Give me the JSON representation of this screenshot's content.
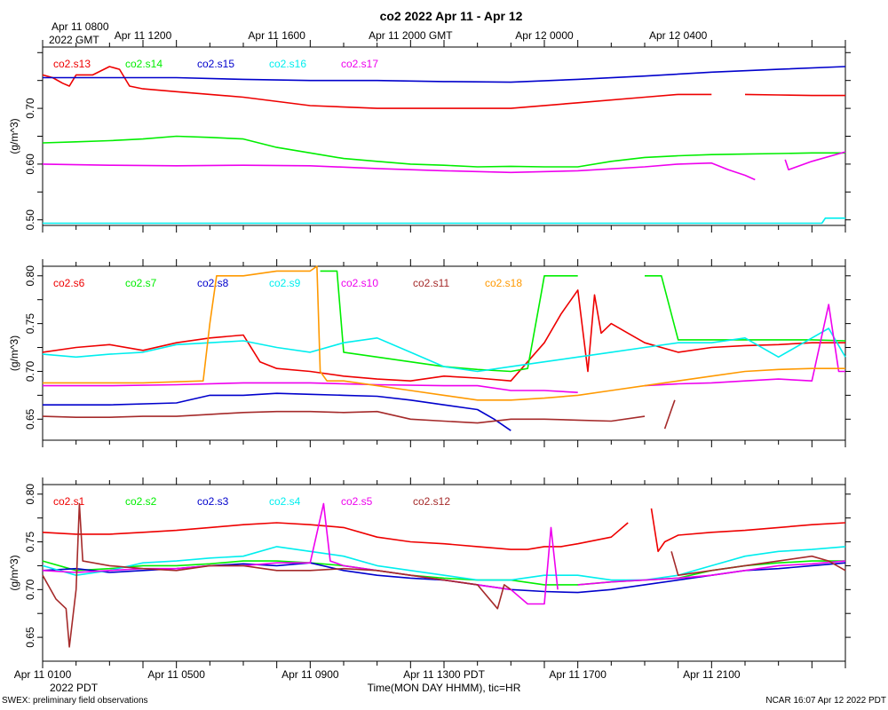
{
  "title": "co2 2022 Apr 11 - Apr 12",
  "top_axis": {
    "origin_line1": "Apr 11 0800",
    "origin_line2": "2022 GMT",
    "tick_labels": [
      "Apr 11 1200",
      "Apr 11 1600",
      "Apr 11 2000 GMT",
      "Apr 12 0000",
      "Apr 12 0400"
    ]
  },
  "bottom_axis": {
    "origin_line2": "2022 PDT",
    "tick_labels": [
      "Apr 11 0100",
      "Apr 11 0500",
      "Apr 11 0900",
      "Apr 11 1300 PDT",
      "Apr 11 1700",
      "Apr 11 2100"
    ],
    "xlabel": "Time(MON DAY HHMM), tic=HR"
  },
  "footer": {
    "left": "SWEX: preliminary field observations",
    "right": "NCAR 16:07 Apr 12 2022 PDT"
  },
  "colors": {
    "red": "#ee0000",
    "green": "#00ee00",
    "blue": "#0000cc",
    "cyan": "#00eeee",
    "magenta": "#ee00ee",
    "brown": "#a52a2a",
    "orange": "#ff9900"
  },
  "chart_data": [
    {
      "type": "line",
      "ylabel": "(g/m^3)",
      "ylim": [
        0.49,
        0.81
      ],
      "yticks": [
        "0.50",
        "0.60",
        "0.70"
      ],
      "ytick_values": [
        0.5,
        0.6,
        0.7
      ],
      "series": [
        {
          "name": "co2.s13",
          "color": "#ee0000",
          "x": [
            0,
            0.3,
            0.6,
            0.8,
            1,
            1.5,
            2,
            2.3,
            2.6,
            3,
            4,
            6,
            8,
            10,
            11,
            12,
            14,
            16,
            18,
            19,
            20,
            20.5,
            21,
            22,
            23,
            24
          ],
          "y": [
            0.76,
            0.755,
            0.745,
            0.74,
            0.76,
            0.76,
            0.775,
            0.77,
            0.74,
            0.735,
            0.73,
            0.72,
            0.705,
            0.7,
            0.7,
            0.7,
            0.7,
            0.71,
            0.72,
            0.725,
            0.725,
            null,
            0.725,
            0.724,
            0.723,
            0.723
          ]
        },
        {
          "name": "co2.s14",
          "color": "#00ee00",
          "x": [
            0,
            1,
            2,
            3,
            4,
            5,
            6,
            7,
            8,
            9,
            10,
            11,
            12,
            13,
            14,
            15,
            16,
            17,
            18,
            19,
            20,
            21,
            22,
            23,
            24
          ],
          "y": [
            0.638,
            0.64,
            0.642,
            0.645,
            0.65,
            0.648,
            0.645,
            0.63,
            0.62,
            0.61,
            0.605,
            0.6,
            0.598,
            0.595,
            0.596,
            0.595,
            0.595,
            0.605,
            0.612,
            0.615,
            0.617,
            0.618,
            0.619,
            0.62,
            0.62
          ]
        },
        {
          "name": "co2.s15",
          "color": "#0000cc",
          "x": [
            0,
            2,
            4,
            6,
            8,
            10,
            12,
            14,
            16,
            18,
            20,
            22,
            24
          ],
          "y": [
            0.755,
            0.755,
            0.755,
            0.752,
            0.75,
            0.75,
            0.748,
            0.747,
            0.752,
            0.758,
            0.765,
            0.77,
            0.775
          ]
        },
        {
          "name": "co2.s16",
          "color": "#00eeee",
          "x": [
            0,
            4,
            8,
            12,
            16,
            20,
            23.3,
            23.4,
            24
          ],
          "y": [
            0.494,
            0.494,
            0.494,
            0.494,
            0.494,
            0.494,
            0.494,
            0.503,
            0.503
          ]
        },
        {
          "name": "co2.s17",
          "color": "#ee00ee",
          "x": [
            0,
            2,
            4,
            6,
            8,
            10,
            12,
            14,
            16,
            18,
            19,
            20,
            20.5,
            21,
            21.3,
            null,
            22.2,
            22.3,
            23,
            24
          ],
          "y": [
            0.6,
            0.598,
            0.597,
            0.598,
            0.597,
            0.592,
            0.588,
            0.585,
            0.588,
            0.595,
            0.6,
            0.602,
            0.59,
            0.58,
            0.572,
            null,
            0.608,
            0.59,
            0.605,
            0.622
          ]
        }
      ]
    },
    {
      "type": "line",
      "ylabel": "(g/m^3)",
      "ylim": [
        0.628,
        0.81
      ],
      "yticks": [
        "0.65",
        "0.70",
        "0.75",
        "0.80"
      ],
      "ytick_values": [
        0.65,
        0.7,
        0.75,
        0.8
      ],
      "series": [
        {
          "name": "co2.s6",
          "color": "#ee0000",
          "x": [
            0,
            1,
            2,
            3,
            4,
            5,
            6,
            6.5,
            7,
            8,
            9,
            10,
            11,
            12,
            13,
            14,
            15,
            15.5,
            16,
            16.3,
            16.5,
            16.7,
            17,
            17.5,
            18,
            19,
            20,
            21,
            22,
            23,
            24
          ],
          "y": [
            0.72,
            0.725,
            0.728,
            0.722,
            0.73,
            0.735,
            0.738,
            0.71,
            0.703,
            0.7,
            0.695,
            0.692,
            0.69,
            0.695,
            0.693,
            0.69,
            0.73,
            0.76,
            0.785,
            0.7,
            0.78,
            0.74,
            0.75,
            0.74,
            0.73,
            0.72,
            0.725,
            0.727,
            0.728,
            0.73,
            0.73
          ]
        },
        {
          "name": "co2.s7",
          "color": "#00ee00",
          "x": [
            8.3,
            8.8,
            9,
            10,
            11,
            12,
            13,
            14,
            14.5,
            14.9,
            15,
            16,
            17,
            18,
            18.5,
            19,
            20,
            21,
            22,
            23,
            24
          ],
          "y": [
            0.805,
            0.805,
            0.72,
            0.715,
            0.71,
            0.705,
            0.702,
            0.7,
            0.703,
            0.78,
            0.8,
            0.8,
            null,
            0.8,
            0.8,
            0.733,
            0.733,
            0.733,
            0.733,
            0.733,
            0.732
          ]
        },
        {
          "name": "co2.s8",
          "color": "#0000cc",
          "x": [
            0,
            2,
            4,
            5,
            6,
            7,
            8,
            9,
            10,
            11,
            12,
            13,
            13.5,
            14
          ],
          "y": [
            0.665,
            0.665,
            0.667,
            0.675,
            0.675,
            0.677,
            0.676,
            0.675,
            0.674,
            0.67,
            0.665,
            0.66,
            0.65,
            0.638
          ]
        },
        {
          "name": "co2.s9",
          "color": "#00eeee",
          "x": [
            0,
            1,
            2,
            3,
            4,
            5,
            6,
            7,
            8,
            9,
            10,
            11,
            12,
            13,
            14,
            15,
            16,
            17,
            18,
            19,
            20,
            21,
            22,
            23,
            23.5,
            24
          ],
          "y": [
            0.718,
            0.715,
            0.718,
            0.72,
            0.728,
            0.73,
            0.732,
            0.725,
            0.72,
            0.73,
            0.735,
            0.72,
            0.705,
            0.7,
            0.705,
            0.71,
            0.715,
            0.72,
            0.725,
            0.73,
            0.73,
            0.735,
            0.715,
            0.735,
            0.745,
            0.715
          ]
        },
        {
          "name": "co2.s10",
          "color": "#ee00ee",
          "x": [
            0,
            2,
            4,
            6,
            8,
            10,
            12,
            13,
            14,
            15,
            16,
            17,
            18,
            19,
            20,
            21,
            22,
            23,
            23.5,
            23.8,
            24
          ],
          "y": [
            0.685,
            0.685,
            0.686,
            0.688,
            0.688,
            0.686,
            0.685,
            0.685,
            0.68,
            0.68,
            0.678,
            null,
            0.685,
            0.687,
            0.688,
            0.69,
            0.692,
            0.69,
            0.77,
            0.7,
            0.7
          ]
        },
        {
          "name": "co2.s11",
          "color": "#a52a2a",
          "x": [
            0,
            1,
            2,
            3,
            4,
            5,
            6,
            7,
            8,
            9,
            10,
            11,
            12,
            13,
            14,
            15,
            16,
            17,
            18,
            null,
            18.6,
            18.8,
            18.9
          ],
          "y": [
            0.653,
            0.652,
            0.652,
            0.653,
            0.653,
            0.655,
            0.657,
            0.658,
            0.658,
            0.657,
            0.658,
            0.65,
            0.648,
            0.646,
            0.65,
            0.65,
            0.649,
            0.648,
            0.653,
            null,
            0.64,
            0.66,
            0.67
          ]
        },
        {
          "name": "co2.s18",
          "color": "#ff9900",
          "x": [
            0,
            3,
            4.8,
            5,
            5.2,
            6,
            7,
            8,
            8.2,
            8.3,
            8.5,
            9,
            10,
            11,
            12,
            13,
            14,
            15,
            16,
            17,
            18,
            19,
            20,
            21,
            22,
            23,
            24
          ],
          "y": [
            0.688,
            0.688,
            0.69,
            0.75,
            0.8,
            0.8,
            0.805,
            0.805,
            0.81,
            0.7,
            0.69,
            0.69,
            0.685,
            0.68,
            0.675,
            0.67,
            0.67,
            0.672,
            0.675,
            0.68,
            0.685,
            0.69,
            0.695,
            0.7,
            0.702,
            0.703,
            0.703
          ]
        }
      ]
    },
    {
      "type": "line",
      "ylabel": "(g/m^3)",
      "ylim": [
        0.625,
        0.81
      ],
      "yticks": [
        "0.65",
        "0.70",
        "0.75",
        "0.80"
      ],
      "ytick_values": [
        0.65,
        0.7,
        0.75,
        0.8
      ],
      "series": [
        {
          "name": "co2.s1",
          "color": "#ee0000",
          "x": [
            0,
            1,
            2,
            3,
            4,
            5,
            6,
            7,
            8,
            9,
            10,
            11,
            12,
            13,
            14,
            14.5,
            15,
            15.5,
            16,
            17,
            17.5,
            null,
            18.2,
            18.4,
            18.6,
            19,
            20,
            21,
            22,
            23,
            24
          ],
          "y": [
            0.76,
            0.758,
            0.758,
            0.76,
            0.762,
            0.765,
            0.768,
            0.77,
            0.768,
            0.765,
            0.755,
            0.75,
            0.748,
            0.745,
            0.742,
            0.742,
            0.745,
            0.745,
            0.748,
            0.755,
            0.77,
            null,
            0.785,
            0.74,
            0.75,
            0.757,
            0.76,
            0.762,
            0.765,
            0.768,
            0.77
          ]
        },
        {
          "name": "co2.s2",
          "color": "#00ee00",
          "x": [
            0,
            1,
            2,
            3,
            4,
            5,
            6,
            7,
            8,
            9,
            10,
            11,
            12,
            13,
            14,
            15,
            16,
            17,
            18,
            19,
            20,
            21,
            22,
            23,
            24
          ],
          "y": [
            0.73,
            0.72,
            0.722,
            0.725,
            0.725,
            0.727,
            0.73,
            0.73,
            0.728,
            0.725,
            0.72,
            0.715,
            0.712,
            0.71,
            0.71,
            0.705,
            0.705,
            0.708,
            0.71,
            0.712,
            0.72,
            0.725,
            0.728,
            0.73,
            0.73
          ]
        },
        {
          "name": "co2.s3",
          "color": "#0000cc",
          "x": [
            0,
            1,
            2,
            3,
            4,
            5,
            6,
            7,
            8,
            9,
            10,
            11,
            12,
            13,
            14,
            15,
            16,
            17,
            18,
            19,
            20,
            21,
            22,
            23,
            24
          ],
          "y": [
            0.72,
            0.722,
            0.718,
            0.72,
            0.722,
            0.725,
            0.727,
            0.725,
            0.728,
            0.72,
            0.715,
            0.712,
            0.71,
            0.705,
            0.7,
            0.698,
            0.697,
            0.7,
            0.705,
            0.71,
            0.715,
            0.72,
            0.722,
            0.725,
            0.728
          ]
        },
        {
          "name": "co2.s4",
          "color": "#00eeee",
          "x": [
            0,
            1,
            2,
            3,
            4,
            5,
            6,
            7,
            8,
            9,
            10,
            11,
            12,
            13,
            14,
            15,
            16,
            17,
            18,
            19,
            20,
            21,
            22,
            23,
            24
          ],
          "y": [
            0.725,
            0.715,
            0.72,
            0.728,
            0.73,
            0.733,
            0.735,
            0.745,
            0.74,
            0.735,
            0.725,
            0.72,
            0.715,
            0.71,
            0.71,
            0.715,
            0.715,
            0.71,
            0.71,
            0.715,
            0.725,
            0.735,
            0.74,
            0.742,
            0.745
          ]
        },
        {
          "name": "co2.s5",
          "color": "#ee00ee",
          "x": [
            0,
            1,
            2,
            3,
            4,
            5,
            6,
            7,
            8,
            8.4,
            8.6,
            9,
            10,
            11,
            12,
            13,
            14,
            14.5,
            15,
            15.2,
            15.4,
            null,
            16,
            17,
            18,
            19,
            20,
            21,
            22,
            23,
            24
          ],
          "y": [
            0.72,
            0.718,
            0.72,
            0.722,
            0.722,
            0.725,
            0.725,
            0.728,
            0.728,
            0.79,
            0.73,
            0.725,
            0.72,
            0.715,
            0.71,
            0.705,
            0.7,
            0.685,
            0.685,
            0.765,
            0.7,
            null,
            0.705,
            0.708,
            0.71,
            0.712,
            0.715,
            0.72,
            0.725,
            0.727,
            0.73
          ]
        },
        {
          "name": "co2.s12",
          "color": "#a52a2a",
          "x": [
            0,
            0.4,
            0.7,
            0.8,
            1,
            1.1,
            1.2,
            2,
            3,
            4,
            5,
            6,
            7,
            8,
            9,
            10,
            11,
            12,
            13,
            13.6,
            13.8,
            14,
            null,
            18.8,
            19,
            20,
            21,
            22,
            23,
            23.5,
            24
          ],
          "y": [
            0.715,
            0.69,
            0.68,
            0.64,
            0.7,
            0.79,
            0.73,
            0.725,
            0.722,
            0.72,
            0.725,
            0.725,
            0.72,
            0.72,
            0.722,
            0.72,
            0.715,
            0.71,
            0.705,
            0.68,
            0.705,
            0.7,
            null,
            0.74,
            0.715,
            0.72,
            0.725,
            0.73,
            0.735,
            0.73,
            0.72
          ]
        }
      ]
    }
  ]
}
